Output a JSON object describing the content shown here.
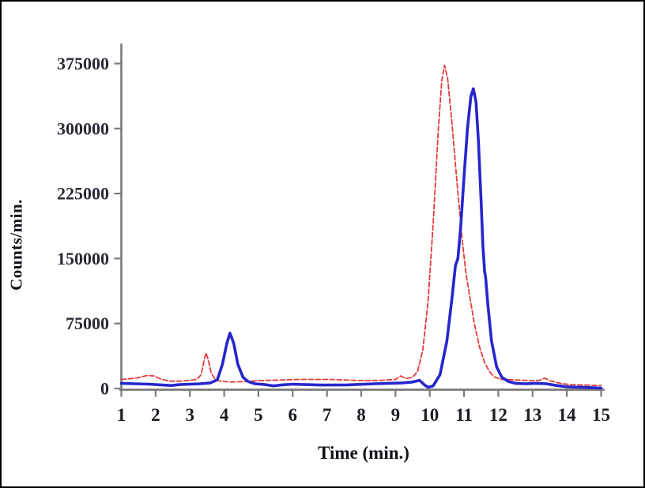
{
  "figure": {
    "background": "#ffffff",
    "border_color": "#000000"
  },
  "chart_data": {
    "type": "line",
    "title": "",
    "xlabel": "Time (min.)",
    "ylabel": "Counts/min.",
    "xlim": [
      1,
      15.1
    ],
    "ylim": [
      0,
      398000
    ],
    "grid": false,
    "legend": "none",
    "axis_color": "#7a7a7a",
    "x_ticks": [
      1,
      2,
      3,
      4,
      5,
      6,
      7,
      8,
      9,
      10,
      11,
      12,
      13,
      14,
      15
    ],
    "y_ticks": [
      0,
      75000,
      150000,
      225000,
      300000,
      375000
    ],
    "y_tick_labels": [
      "0",
      "75000",
      "150000",
      "225000",
      "300000",
      "375000"
    ],
    "series": [
      {
        "name": "red-trace",
        "color": "#e23b3b",
        "style": "dashed",
        "width": 1.8,
        "points": [
          [
            1.0,
            10500
          ],
          [
            1.2,
            11000
          ],
          [
            1.5,
            12500
          ],
          [
            1.75,
            15000
          ],
          [
            1.95,
            14500
          ],
          [
            2.15,
            11000
          ],
          [
            2.4,
            8500
          ],
          [
            2.7,
            8500
          ],
          [
            3.0,
            9500
          ],
          [
            3.2,
            10500
          ],
          [
            3.33,
            16000
          ],
          [
            3.42,
            33000
          ],
          [
            3.47,
            41000
          ],
          [
            3.53,
            34000
          ],
          [
            3.62,
            18000
          ],
          [
            3.75,
            10000
          ],
          [
            3.9,
            8500
          ],
          [
            4.2,
            7500
          ],
          [
            4.6,
            8000
          ],
          [
            5.0,
            9000
          ],
          [
            5.4,
            9500
          ],
          [
            5.8,
            10000
          ],
          [
            6.2,
            10500
          ],
          [
            6.6,
            10500
          ],
          [
            7.0,
            10500
          ],
          [
            7.4,
            10000
          ],
          [
            7.8,
            9500
          ],
          [
            8.2,
            9000
          ],
          [
            8.6,
            9500
          ],
          [
            9.0,
            10500
          ],
          [
            9.15,
            14500
          ],
          [
            9.3,
            11500
          ],
          [
            9.5,
            13000
          ],
          [
            9.65,
            20000
          ],
          [
            9.8,
            45000
          ],
          [
            9.95,
            100000
          ],
          [
            10.1,
            190000
          ],
          [
            10.25,
            300000
          ],
          [
            10.35,
            355000
          ],
          [
            10.43,
            373000
          ],
          [
            10.52,
            358000
          ],
          [
            10.65,
            305000
          ],
          [
            10.8,
            235000
          ],
          [
            10.95,
            170000
          ],
          [
            11.05,
            135000
          ],
          [
            11.15,
            110000
          ],
          [
            11.3,
            75000
          ],
          [
            11.45,
            48000
          ],
          [
            11.6,
            30000
          ],
          [
            11.75,
            19000
          ],
          [
            11.9,
            13000
          ],
          [
            12.1,
            10500
          ],
          [
            12.4,
            10000
          ],
          [
            12.7,
            9500
          ],
          [
            13.0,
            9000
          ],
          [
            13.2,
            9500
          ],
          [
            13.35,
            12000
          ],
          [
            13.5,
            9000
          ],
          [
            13.8,
            6000
          ],
          [
            14.1,
            4500
          ],
          [
            14.5,
            4000
          ],
          [
            15.0,
            3500
          ]
        ]
      },
      {
        "name": "blue-trace",
        "color": "#2626cd",
        "style": "solid",
        "width": 3.6,
        "points": [
          [
            1.0,
            6000
          ],
          [
            1.4,
            5500
          ],
          [
            1.8,
            5000
          ],
          [
            2.2,
            4000
          ],
          [
            2.45,
            3500
          ],
          [
            2.7,
            4500
          ],
          [
            3.0,
            5000
          ],
          [
            3.3,
            5500
          ],
          [
            3.6,
            6500
          ],
          [
            3.8,
            10000
          ],
          [
            3.95,
            28000
          ],
          [
            4.08,
            52000
          ],
          [
            4.17,
            64000
          ],
          [
            4.28,
            52000
          ],
          [
            4.4,
            28000
          ],
          [
            4.55,
            13000
          ],
          [
            4.7,
            8000
          ],
          [
            4.9,
            5500
          ],
          [
            5.2,
            4500
          ],
          [
            5.45,
            3000
          ],
          [
            5.65,
            4000
          ],
          [
            6.0,
            5000
          ],
          [
            6.4,
            4500
          ],
          [
            6.8,
            4000
          ],
          [
            7.2,
            4000
          ],
          [
            7.6,
            4200
          ],
          [
            8.0,
            4800
          ],
          [
            8.4,
            5500
          ],
          [
            8.8,
            6000
          ],
          [
            9.2,
            6500
          ],
          [
            9.5,
            7500
          ],
          [
            9.7,
            9500
          ],
          [
            9.85,
            4000
          ],
          [
            9.95,
            1500
          ],
          [
            10.1,
            3000
          ],
          [
            10.3,
            16000
          ],
          [
            10.5,
            55000
          ],
          [
            10.65,
            105000
          ],
          [
            10.75,
            142000
          ],
          [
            10.82,
            150000
          ],
          [
            10.9,
            185000
          ],
          [
            11.0,
            245000
          ],
          [
            11.1,
            300000
          ],
          [
            11.2,
            337000
          ],
          [
            11.27,
            346000
          ],
          [
            11.35,
            331000
          ],
          [
            11.42,
            285000
          ],
          [
            11.5,
            215000
          ],
          [
            11.55,
            165000
          ],
          [
            11.6,
            135000
          ],
          [
            11.63,
            128000
          ],
          [
            11.7,
            95000
          ],
          [
            11.8,
            55000
          ],
          [
            11.95,
            25000
          ],
          [
            12.1,
            13000
          ],
          [
            12.3,
            8000
          ],
          [
            12.5,
            6000
          ],
          [
            12.8,
            5500
          ],
          [
            13.1,
            6000
          ],
          [
            13.4,
            5500
          ],
          [
            13.7,
            3500
          ],
          [
            14.0,
            2000
          ],
          [
            14.4,
            1500
          ],
          [
            14.8,
            800
          ],
          [
            15.0,
            500
          ]
        ]
      }
    ]
  }
}
